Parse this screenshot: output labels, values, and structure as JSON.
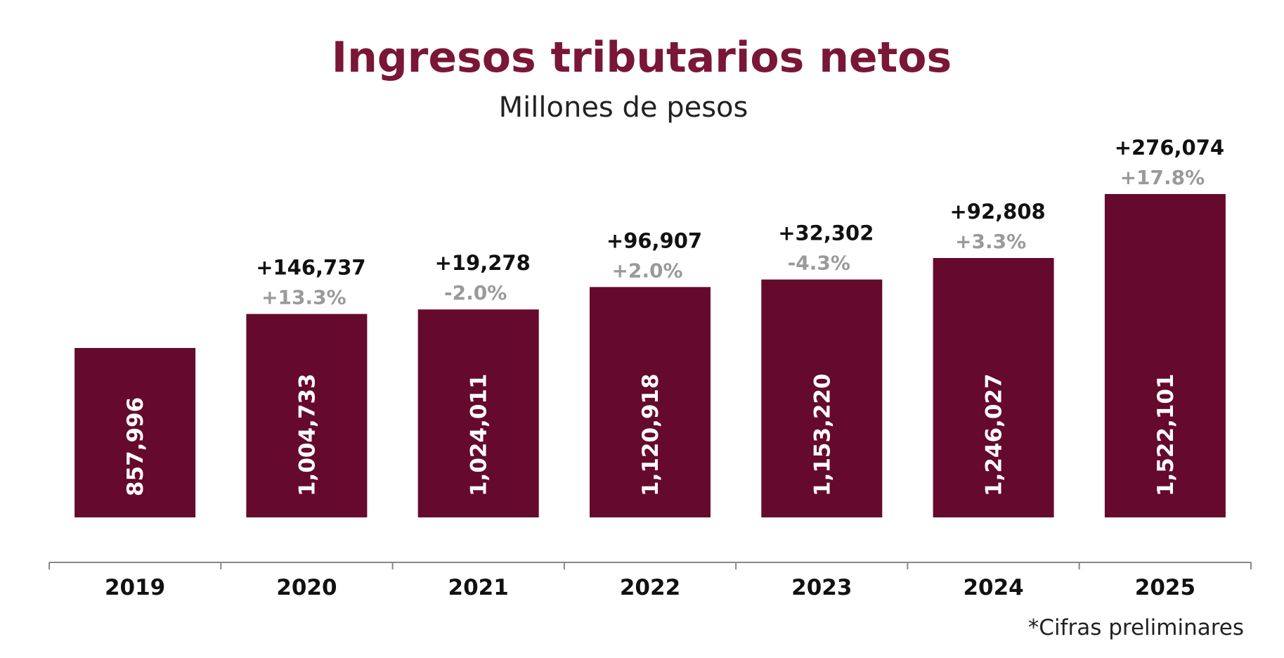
{
  "chart_data": {
    "type": "bar",
    "title": "Ingresos tributarios netos",
    "subtitle": "Millones de pesos",
    "xlabel": "",
    "ylabel": "",
    "categories": [
      "2019",
      "2020",
      "2021",
      "2022",
      "2023",
      "2024",
      "2025"
    ],
    "values": [
      857996,
      1004733,
      1024011,
      1120918,
      1153220,
      1246027,
      1522101
    ],
    "value_labels": [
      "857,996",
      "1,004,733",
      "1,024,011",
      "1,120,918",
      "1,153,220",
      "1,246,027",
      "1,522,101"
    ],
    "change_abs": [
      "",
      "+146,737",
      "+19,278",
      "+96,907",
      "+32,302",
      "+92,808",
      "+276,074"
    ],
    "change_pct": [
      "",
      "+13.3%",
      "-2.0%",
      "+2.0%",
      "-4.3%",
      "+3.3%",
      "+17.8%"
    ],
    "grid": false,
    "legend": "none",
    "note": "*Cifras preliminares",
    "colors": {
      "bar": "#650a2c",
      "title": "#7a1636",
      "pct_label": "#9a9a9a",
      "axis": "#888888"
    }
  }
}
